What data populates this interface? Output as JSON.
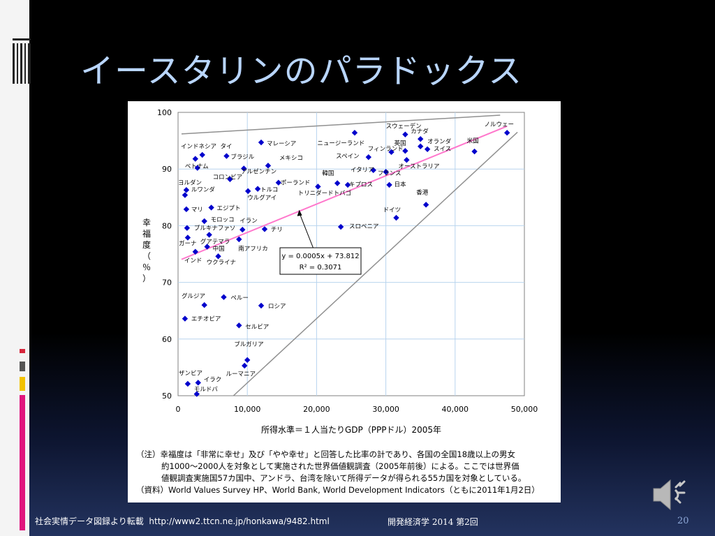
{
  "slide": {
    "title": "イースタリンのパラドックス",
    "footer_source": "社会実情データ図録より転載",
    "footer_url": "http://www2.ttcn.ne.jp/honkawa/9482.html",
    "footer_course": "開発経済学 2014 第2回",
    "page_number": "20",
    "note_line1": "（注）幸福度は「非常に幸せ」及び「やや幸せ」と回答した比率の計であり、各国の全国18歳以上の男女",
    "note_line2": "約1000～2000人を対象として実施された世界価値観調査（2005年前後）による。ここでは世界価",
    "note_line3": "値観調査実施国57カ国中、アンドラ、台湾を除いて所得データが得られる55カ国を対象としている。",
    "note_line4": "（資料）World Values Survey HP、World Bank, World Development Indicators（ともに2011年1月2日）",
    "icons": {
      "speaker": "speaker-icon"
    },
    "colors": {
      "title": "#b9d6ff",
      "accent_red": "#d7263d",
      "accent_yellow": "#f2c200",
      "accent_blue": "#2c5aa0"
    }
  },
  "chart_data": {
    "type": "scatter",
    "xlabel": "所得水準＝１人当たりGDP（PPPドル）2005年",
    "ylabel": "幸福度（％）",
    "xlim": [
      0,
      50000
    ],
    "ylim": [
      50,
      100
    ],
    "x_ticks": [
      0,
      10000,
      20000,
      30000,
      40000,
      50000
    ],
    "x_tick_labels": [
      "0",
      "10,000",
      "20,000",
      "30,000",
      "40,000",
      "50,000"
    ],
    "y_ticks": [
      50,
      60,
      70,
      80,
      90,
      100
    ],
    "y_tick_labels": [
      "50",
      "60",
      "70",
      "80",
      "90",
      "100"
    ],
    "grid": true,
    "marker_color": "#0000cc",
    "trendline": {
      "slope": 0.0005,
      "intercept": 73.812,
      "color": "#ff77cc",
      "equation": "y = 0.0005x + 73.812",
      "r2": "R² = 0.3071"
    },
    "guide_lines": [
      {
        "x1": 500,
        "y1": 96.2,
        "x2": 46500,
        "y2": 99.5,
        "color": "#909090"
      },
      {
        "x1": 8000,
        "y1": 50,
        "x2": 49000,
        "y2": 96.5,
        "color": "#909090"
      }
    ],
    "points": [
      {
        "label": "ノルウェー",
        "x": 47500,
        "y": 96.4,
        "lx": 44200,
        "ly": 97.9
      },
      {
        "label": "米国",
        "x": 42800,
        "y": 93.1,
        "lx": 41700,
        "ly": 95.0
      },
      {
        "label": "スウェーデン",
        "x": 32800,
        "y": 96.1,
        "lx": 30000,
        "ly": 97.6
      },
      {
        "label": "カナダ",
        "x": 35000,
        "y": 95.3,
        "lx": 33600,
        "ly": 96.7
      },
      {
        "label": "ニュージーランド",
        "x": 25500,
        "y": 96.4,
        "lx": 20100,
        "ly": 94.6
      },
      {
        "label": "英国",
        "x": 32800,
        "y": 93.2,
        "lx": 31200,
        "ly": 94.6
      },
      {
        "label": "オランダ",
        "x": 35000,
        "y": 94.0,
        "lx": 36000,
        "ly": 94.9
      },
      {
        "label": "スイス",
        "x": 36000,
        "y": 93.5,
        "lx": 36900,
        "ly": 93.6
      },
      {
        "label": "フィンランド",
        "x": 30800,
        "y": 93.0,
        "lx": 27400,
        "ly": 93.6
      },
      {
        "label": "スペイン",
        "x": 27500,
        "y": 92.1,
        "lx": 22800,
        "ly": 92.3
      },
      {
        "label": "オーストラリア",
        "x": 33000,
        "y": 91.6,
        "lx": 31800,
        "ly": 90.5
      },
      {
        "label": "イタリア",
        "x": 28200,
        "y": 89.8,
        "lx": 24900,
        "ly": 89.9
      },
      {
        "label": "フランス",
        "x": 30000,
        "y": 89.5,
        "lx": 28800,
        "ly": 89.3
      },
      {
        "label": "韓国",
        "x": 23000,
        "y": 87.5,
        "lx": 20800,
        "ly": 89.3
      },
      {
        "label": "キプロス",
        "x": 24500,
        "y": 87.2,
        "lx": 24700,
        "ly": 87.3
      },
      {
        "label": "日本",
        "x": 30500,
        "y": 87.2,
        "lx": 31200,
        "ly": 87.3
      },
      {
        "label": "トリニダードトバゴ",
        "x": 20200,
        "y": 86.9,
        "lx": 17300,
        "ly": 85.8
      },
      {
        "label": "香港",
        "x": 35800,
        "y": 83.7,
        "lx": 34400,
        "ly": 85.9
      },
      {
        "label": "ドイツ",
        "x": 31500,
        "y": 81.4,
        "lx": 29600,
        "ly": 82.8
      },
      {
        "label": "スロベニア",
        "x": 23500,
        "y": 79.8,
        "lx": 24700,
        "ly": 79.9
      },
      {
        "label": "インドネシア",
        "x": 2500,
        "y": 91.8,
        "lx": 400,
        "ly": 94.0
      },
      {
        "label": "タイ",
        "x": 3500,
        "y": 92.5,
        "lx": 6100,
        "ly": 94.0
      },
      {
        "label": "マレーシア",
        "x": 12000,
        "y": 94.7,
        "lx": 12800,
        "ly": 94.5
      },
      {
        "label": "ブラジル",
        "x": 7000,
        "y": 92.3,
        "lx": 7600,
        "ly": 92.2
      },
      {
        "label": "メキシコ",
        "x": 13000,
        "y": 90.6,
        "lx": 14600,
        "ly": 92.0
      },
      {
        "label": "ベトナム",
        "x": 2800,
        "y": 90.2,
        "lx": 1000,
        "ly": 90.5
      },
      {
        "label": "アルゼンチン",
        "x": 9500,
        "y": 90.1,
        "lx": 9100,
        "ly": 89.6
      },
      {
        "label": "コロンビア",
        "x": 7500,
        "y": 88.2,
        "lx": 5000,
        "ly": 88.6
      },
      {
        "label": "ポーランド",
        "x": 14500,
        "y": 87.6,
        "lx": 14800,
        "ly": 87.6
      },
      {
        "label": "ヨルダン",
        "x": 1000,
        "y": 85.4,
        "lx": 0,
        "ly": 87.6
      },
      {
        "label": "ルワンダ",
        "x": 1200,
        "y": 86.3,
        "lx": 1900,
        "ly": 86.4
      },
      {
        "label": "トルコ",
        "x": 11500,
        "y": 86.5,
        "lx": 11900,
        "ly": 86.4
      },
      {
        "label": "ウルグアイ",
        "x": 10100,
        "y": 86.1,
        "lx": 10000,
        "ly": 85.0
      },
      {
        "label": "マリ",
        "x": 1200,
        "y": 82.9,
        "lx": 1900,
        "ly": 82.9
      },
      {
        "label": "エジプト",
        "x": 4800,
        "y": 83.2,
        "lx": 5600,
        "ly": 83.1
      },
      {
        "label": "モロッコ",
        "x": 3800,
        "y": 80.8,
        "lx": 4700,
        "ly": 81.1
      },
      {
        "label": "イラン",
        "x": 9300,
        "y": 79.3,
        "lx": 8900,
        "ly": 80.9
      },
      {
        "label": "ブルキナファソ",
        "x": 1300,
        "y": 79.6,
        "lx": 2300,
        "ly": 79.6
      },
      {
        "label": "チリ",
        "x": 12500,
        "y": 79.4,
        "lx": 13400,
        "ly": 79.4
      },
      {
        "label": "ガーナ",
        "x": 1400,
        "y": 77.9,
        "lx": 100,
        "ly": 76.9
      },
      {
        "label": "グアテマラ",
        "x": 4500,
        "y": 78.4,
        "lx": 3200,
        "ly": 77.2
      },
      {
        "label": "中国",
        "x": 4200,
        "y": 76.3,
        "lx": 5000,
        "ly": 76.0
      },
      {
        "label": "南アフリカ",
        "x": 8800,
        "y": 77.6,
        "lx": 8700,
        "ly": 76.0
      },
      {
        "label": "インド",
        "x": 2500,
        "y": 75.4,
        "lx": 900,
        "ly": 73.9
      },
      {
        "label": "ウクライナ",
        "x": 5800,
        "y": 74.6,
        "lx": 4100,
        "ly": 73.6
      },
      {
        "label": "グルジア",
        "x": 3800,
        "y": 66.0,
        "lx": 500,
        "ly": 67.6
      },
      {
        "label": "ペルー",
        "x": 6600,
        "y": 67.4,
        "lx": 7600,
        "ly": 67.3
      },
      {
        "label": "ロシア",
        "x": 12000,
        "y": 65.9,
        "lx": 13000,
        "ly": 65.8
      },
      {
        "label": "エチオピア",
        "x": 1000,
        "y": 63.6,
        "lx": 1900,
        "ly": 63.6
      },
      {
        "label": "セルビア",
        "x": 8800,
        "y": 62.4,
        "lx": 9700,
        "ly": 62.2
      },
      {
        "label": "ブルガリア",
        "x": 10000,
        "y": 56.3,
        "lx": 8100,
        "ly": 59.1
      },
      {
        "label": "ルーマニア",
        "x": 9600,
        "y": 55.3,
        "lx": 6900,
        "ly": 53.9
      },
      {
        "label": "ザンビア",
        "x": 1400,
        "y": 52.1,
        "lx": 100,
        "ly": 54.0
      },
      {
        "label": "イラク",
        "x": 2900,
        "y": 52.3,
        "lx": 3700,
        "ly": 52.9
      },
      {
        "label": "モルドバ",
        "x": 2700,
        "y": 50.3,
        "lx": 2300,
        "ly": 51.2
      }
    ]
  }
}
